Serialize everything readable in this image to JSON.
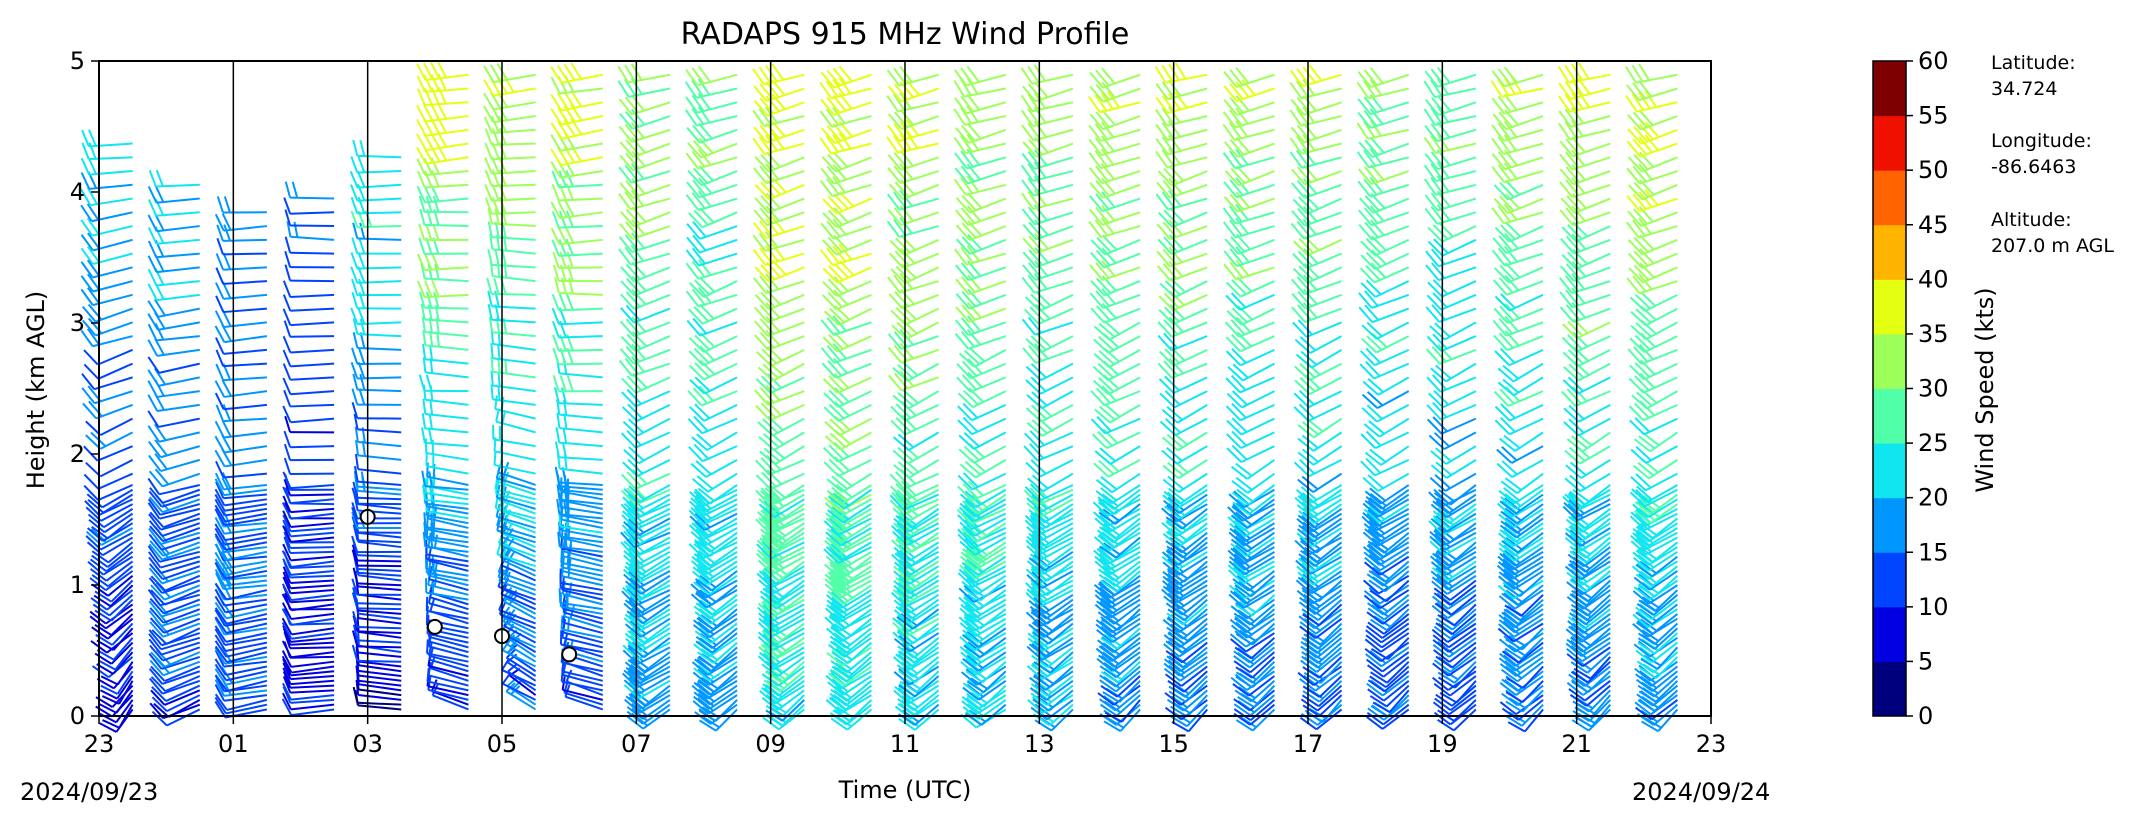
{
  "chart_data": {
    "type": "wind-barb-profile",
    "title": "RADAPS 915 MHz Wind Profile",
    "xlabel": "Time (UTC)",
    "ylabel": "Height (km AGL)",
    "x_ticks": [
      "23",
      "01",
      "03",
      "05",
      "07",
      "09",
      "11",
      "13",
      "15",
      "17",
      "19",
      "21",
      "23"
    ],
    "x_tick_hours": [
      0,
      2,
      4,
      6,
      8,
      10,
      12,
      14,
      16,
      18,
      20,
      22,
      24
    ],
    "xlim_hours": [
      0,
      24
    ],
    "start_date_label": "2024/09/23",
    "end_date_label": "2024/09/24",
    "y_ticks": [
      0,
      1,
      2,
      3,
      4,
      5
    ],
    "ylim": [
      0,
      5
    ],
    "vertical_lines_hours": [
      2,
      4,
      6,
      8,
      10,
      12,
      14,
      16,
      18,
      20,
      22
    ],
    "profile_times_hours": [
      0,
      1,
      2,
      3,
      4,
      5,
      6,
      7,
      8,
      9,
      10,
      11,
      12,
      13,
      14,
      15,
      16,
      17,
      18,
      19,
      20,
      21,
      22,
      23
    ],
    "colorbar": {
      "label": "Wind Speed (kts)",
      "ticks": [
        0,
        5,
        10,
        15,
        20,
        25,
        30,
        35,
        40,
        45,
        50,
        55,
        60
      ],
      "colors": [
        "#00007f",
        "#0000e0",
        "#0044ff",
        "#0096ff",
        "#10e6f0",
        "#50ffa8",
        "#9cff5a",
        "#e4ff12",
        "#ffb400",
        "#ff6400",
        "#f01000",
        "#7f0000"
      ]
    },
    "profiles_kts": [
      {
        "time": 0,
        "top_km": 4.45,
        "low": 8,
        "high": 24,
        "dir_low": 200,
        "dir_high": 270
      },
      {
        "time": 1,
        "top_km": 4.1,
        "low": 12,
        "high": 22,
        "dir_low": 230,
        "dir_high": 270
      },
      {
        "time": 2,
        "top_km": 3.9,
        "low": 14,
        "high": 18,
        "dir_low": 250,
        "dir_high": 270
      },
      {
        "time": 3,
        "top_km": 4.0,
        "low": 8,
        "high": 16,
        "dir_low": 260,
        "dir_high": 275
      },
      {
        "time": 4,
        "top_km": 4.3,
        "low": 6,
        "high": 28,
        "dir_low": 280,
        "dir_high": 265
      },
      {
        "time": 5,
        "top_km": 4.9,
        "low": 10,
        "high": 38,
        "dir_low": 300,
        "dir_high": 255
      },
      {
        "time": 6,
        "top_km": 5.0,
        "low": 12,
        "high": 36,
        "dir_low": 320,
        "dir_high": 255
      },
      {
        "time": 7,
        "top_km": 5.0,
        "low": 10,
        "high": 38,
        "dir_low": 300,
        "dir_high": 250
      },
      {
        "time": 8,
        "top_km": 5.0,
        "low": 18,
        "high": 32,
        "dir_low": 220,
        "dir_high": 245
      },
      {
        "time": 9,
        "top_km": 5.0,
        "low": 18,
        "high": 30,
        "dir_low": 215,
        "dir_high": 245
      },
      {
        "time": 10,
        "top_km": 5.0,
        "low": 22,
        "high": 38,
        "dir_low": 215,
        "dir_high": 245
      },
      {
        "time": 11,
        "top_km": 5.0,
        "low": 22,
        "high": 38,
        "dir_low": 215,
        "dir_high": 245
      },
      {
        "time": 12,
        "top_km": 5.0,
        "low": 20,
        "high": 36,
        "dir_low": 215,
        "dir_high": 245
      },
      {
        "time": 13,
        "top_km": 5.0,
        "low": 20,
        "high": 34,
        "dir_low": 215,
        "dir_high": 245
      },
      {
        "time": 14,
        "top_km": 5.0,
        "low": 18,
        "high": 32,
        "dir_low": 215,
        "dir_high": 245
      },
      {
        "time": 15,
        "top_km": 5.0,
        "low": 16,
        "high": 36,
        "dir_low": 210,
        "dir_high": 245
      },
      {
        "time": 16,
        "top_km": 5.0,
        "low": 14,
        "high": 36,
        "dir_low": 210,
        "dir_high": 245
      },
      {
        "time": 17,
        "top_km": 5.0,
        "low": 14,
        "high": 34,
        "dir_low": 210,
        "dir_high": 245
      },
      {
        "time": 18,
        "top_km": 5.0,
        "low": 14,
        "high": 34,
        "dir_low": 210,
        "dir_high": 245
      },
      {
        "time": 19,
        "top_km": 5.0,
        "low": 12,
        "high": 32,
        "dir_low": 210,
        "dir_high": 245
      },
      {
        "time": 20,
        "top_km": 5.0,
        "low": 14,
        "high": 30,
        "dir_low": 210,
        "dir_high": 245
      },
      {
        "time": 21,
        "top_km": 5.0,
        "low": 14,
        "high": 34,
        "dir_low": 210,
        "dir_high": 245
      },
      {
        "time": 22,
        "top_km": 5.0,
        "low": 14,
        "high": 36,
        "dir_low": 210,
        "dir_high": 245
      },
      {
        "time": 23,
        "top_km": 5.0,
        "low": 16,
        "high": 38,
        "dir_low": 210,
        "dir_high": 245
      }
    ],
    "calm_points": [
      {
        "time": 4.0,
        "height_km": 1.52
      },
      {
        "time": 5.0,
        "height_km": 0.68
      },
      {
        "time": 6.0,
        "height_km": 0.61
      },
      {
        "time": 7.0,
        "height_km": 0.47
      }
    ]
  },
  "site_info": {
    "latitude_label": "Latitude:",
    "latitude_value": "34.724",
    "longitude_label": "Longitude:",
    "longitude_value": "-86.6463",
    "altitude_label": "Altitude:",
    "altitude_value": "207.0 m AGL"
  }
}
